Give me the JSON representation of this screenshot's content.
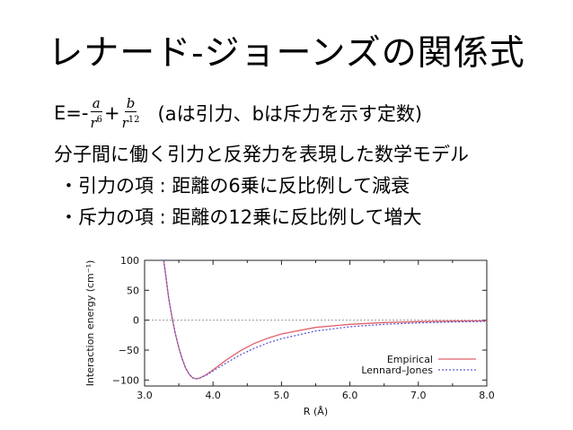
{
  "slide": {
    "title": "レナード-ジョーンズの関係式",
    "formula": {
      "prefix": "E=-",
      "num1": "a",
      "den1_base": "r",
      "den1_exp": "6",
      "plus": "+",
      "num2": "b",
      "den2_base": "r",
      "den2_exp": "12",
      "note": "(aは引力、bは斥力を示す定数)"
    },
    "lines": [
      "分子間に働く引力と反発力を表現した数学モデル",
      "・引力の項 : 距離の6乗に反比例して減衰",
      "・斥力の項 : 距離の12乗に反比例して増大"
    ]
  },
  "chart_data": {
    "type": "line",
    "xlabel": "R (Å)",
    "ylabel": "Interaction energy (cm⁻¹)",
    "xlim": [
      3.0,
      8.0
    ],
    "ylim": [
      -110,
      100
    ],
    "xticks": [
      "3.0",
      "4.0",
      "5.0",
      "6.0",
      "7.0",
      "8.0"
    ],
    "yticks": [
      "100",
      "50",
      "0",
      "−50",
      "−100"
    ],
    "zero_line": true,
    "legend_position": "bottom-right",
    "series": [
      {
        "name": "Empirical",
        "color": "#e0606a",
        "style": "solid",
        "x": [
          3.28,
          3.3,
          3.35,
          3.4,
          3.45,
          3.5,
          3.55,
          3.6,
          3.65,
          3.7,
          3.75,
          3.8,
          3.9,
          4.0,
          4.2,
          4.4,
          4.6,
          4.8,
          5.0,
          5.5,
          6.0,
          6.5,
          7.0,
          7.5,
          8.0
        ],
        "values": [
          100,
          82,
          38,
          5,
          -23,
          -46,
          -65,
          -80,
          -90,
          -96,
          -98,
          -97,
          -91,
          -83,
          -66,
          -51,
          -39,
          -30,
          -23,
          -12,
          -7,
          -4,
          -2.5,
          -1.6,
          -1
        ]
      },
      {
        "name": "Lennard–Jones",
        "color": "#5a5ad8",
        "style": "dotted",
        "x": [
          3.28,
          3.3,
          3.35,
          3.4,
          3.45,
          3.5,
          3.55,
          3.6,
          3.65,
          3.7,
          3.75,
          3.8,
          3.9,
          4.0,
          4.2,
          4.4,
          4.6,
          4.8,
          5.0,
          5.5,
          6.0,
          6.5,
          7.0,
          7.5,
          8.0
        ],
        "values": [
          100,
          82,
          38,
          5,
          -23,
          -46,
          -65,
          -80,
          -90,
          -96,
          -98,
          -97,
          -92,
          -85,
          -71,
          -58,
          -47,
          -38,
          -31,
          -18,
          -11,
          -7,
          -4.5,
          -3,
          -2
        ]
      }
    ]
  }
}
